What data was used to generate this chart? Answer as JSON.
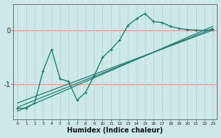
{
  "xlabel": "Humidex (Indice chaleur)",
  "bg_color": "#cce8e8",
  "line_color": "#1a7a6e",
  "hgrid_color": "#e89090",
  "vgrid_color": "#b8d8d8",
  "x_data": [
    0,
    1,
    2,
    3,
    4,
    5,
    6,
    7,
    8,
    9,
    10,
    11,
    12,
    13,
    14,
    15,
    16,
    17,
    18,
    19,
    20,
    21,
    22,
    23
  ],
  "main_y": [
    -1.45,
    -1.45,
    -1.35,
    -0.75,
    -0.35,
    -0.9,
    -0.95,
    -1.3,
    -1.15,
    -0.85,
    -0.5,
    -0.35,
    -0.18,
    0.1,
    0.22,
    0.32,
    0.17,
    0.15,
    0.08,
    0.04,
    0.02,
    0.01,
    0.0,
    0.02
  ],
  "reg_lines": [
    [
      -1.5,
      0.08
    ],
    [
      -1.43,
      0.04
    ],
    [
      -1.35,
      0.01
    ]
  ],
  "ylim": [
    -1.65,
    0.5
  ],
  "xlim": [
    -0.5,
    23.5
  ],
  "yticks": [
    0,
    -1
  ],
  "xticks": [
    0,
    1,
    2,
    3,
    4,
    5,
    6,
    7,
    8,
    9,
    10,
    11,
    12,
    13,
    14,
    15,
    16,
    17,
    18,
    19,
    20,
    21,
    22,
    23
  ]
}
